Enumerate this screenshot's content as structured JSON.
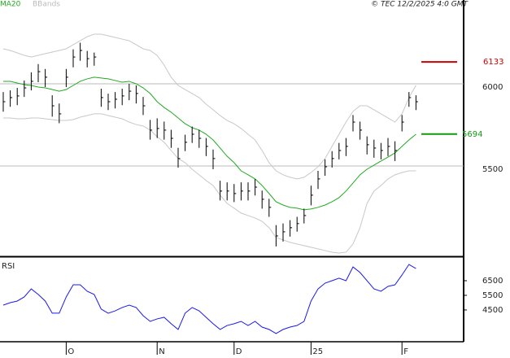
{
  "chart_data": [
    {
      "type": "ohlc",
      "timestamp": "© TEC 12/2/2025 4:0 GMT",
      "categories": [
        null,
        null,
        null,
        null,
        null,
        null,
        null,
        null,
        null,
        "O",
        null,
        null,
        null,
        null,
        null,
        null,
        null,
        null,
        null,
        null,
        null,
        null,
        "N",
        null,
        null,
        null,
        null,
        null,
        null,
        null,
        null,
        null,
        null,
        "D",
        null,
        null,
        null,
        null,
        null,
        null,
        null,
        null,
        null,
        null,
        "25",
        null,
        null,
        null,
        null,
        null,
        null,
        null,
        null,
        null,
        null,
        null,
        null,
        "F",
        null,
        null
      ],
      "high": [
        5950,
        5960,
        5975,
        6020,
        6070,
        6120,
        6090,
        5930,
        5880,
        6090,
        6210,
        6250,
        6200,
        6190,
        5970,
        5940,
        5950,
        5970,
        6000,
        5990,
        5920,
        5780,
        5790,
        5770,
        5720,
        5610,
        5690,
        5740,
        5720,
        5670,
        5600,
        5410,
        5400,
        5390,
        5400,
        5400,
        5420,
        5350,
        5300,
        5140,
        5150,
        5170,
        5190,
        5240,
        5380,
        5470,
        5540,
        5590,
        5640,
        5670,
        5810,
        5770,
        5680,
        5660,
        5640,
        5670,
        5650,
        5810,
        5950,
        5930
      ],
      "low": [
        5830,
        5860,
        5870,
        5920,
        5960,
        6010,
        5980,
        5800,
        5760,
        5980,
        6100,
        6140,
        6100,
        6110,
        5860,
        5840,
        5850,
        5870,
        5900,
        5880,
        5810,
        5660,
        5670,
        5660,
        5610,
        5490,
        5590,
        5640,
        5610,
        5560,
        5480,
        5290,
        5290,
        5280,
        5290,
        5290,
        5320,
        5240,
        5190,
        5010,
        5040,
        5070,
        5100,
        5150,
        5260,
        5360,
        5440,
        5490,
        5540,
        5560,
        5710,
        5660,
        5570,
        5550,
        5540,
        5560,
        5530,
        5710,
        5860,
        5840
      ],
      "close": [
        5891,
        5916,
        5926,
        5975,
        6015,
        6074,
        6040,
        5866,
        5817,
        6040,
        6163,
        6203,
        6153,
        6163,
        5916,
        5891,
        5906,
        5926,
        5955,
        5941,
        5866,
        5718,
        5728,
        5718,
        5668,
        5545,
        5644,
        5693,
        5668,
        5619,
        5545,
        5347,
        5347,
        5332,
        5347,
        5347,
        5371,
        5297,
        5248,
        5074,
        5099,
        5124,
        5149,
        5198,
        5322,
        5421,
        5495,
        5545,
        5594,
        5619,
        5767,
        5718,
        5629,
        5609,
        5594,
        5619,
        5594,
        5767,
        5916,
        5891
      ],
      "color": "#000000",
      "series": [
        {
          "name": "MA20",
          "color": "#22aa22",
          "values": [
            6015,
            6015,
            6005,
            5995,
            5990,
            5980,
            5975,
            5965,
            5955,
            5965,
            5990,
            6015,
            6030,
            6040,
            6035,
            6030,
            6020,
            6010,
            6015,
            6000,
            5975,
            5941,
            5891,
            5856,
            5827,
            5792,
            5757,
            5733,
            5718,
            5693,
            5658,
            5609,
            5559,
            5520,
            5470,
            5446,
            5421,
            5381,
            5332,
            5282,
            5262,
            5248,
            5243,
            5233,
            5238,
            5248,
            5262,
            5282,
            5307,
            5347,
            5396,
            5446,
            5480,
            5505,
            5530,
            5554,
            5579,
            5619,
            5658,
            5693
          ]
        },
        {
          "name": "BBands",
          "color": "#c8c8c8",
          "upper": [
            6213,
            6203,
            6188,
            6173,
            6163,
            6173,
            6183,
            6193,
            6203,
            6213,
            6238,
            6262,
            6287,
            6302,
            6302,
            6292,
            6282,
            6272,
            6262,
            6238,
            6213,
            6203,
            6173,
            6114,
            6040,
            5990,
            5965,
            5941,
            5916,
            5876,
            5842,
            5807,
            5777,
            5757,
            5728,
            5693,
            5658,
            5594,
            5520,
            5470,
            5446,
            5431,
            5421,
            5431,
            5460,
            5495,
            5545,
            5619,
            5693,
            5767,
            5832,
            5866,
            5866,
            5842,
            5817,
            5792,
            5767,
            5817,
            5916,
            5990
          ],
          "lower": [
            5792,
            5792,
            5787,
            5787,
            5792,
            5792,
            5787,
            5782,
            5777,
            5777,
            5782,
            5797,
            5807,
            5817,
            5817,
            5807,
            5797,
            5787,
            5767,
            5752,
            5743,
            5718,
            5678,
            5644,
            5594,
            5545,
            5520,
            5480,
            5446,
            5411,
            5381,
            5322,
            5272,
            5243,
            5213,
            5198,
            5183,
            5163,
            5124,
            5064,
            5050,
            5035,
            5025,
            5015,
            5005,
            4995,
            4985,
            4975,
            4970,
            4975,
            5025,
            5124,
            5272,
            5347,
            5381,
            5421,
            5446,
            5460,
            5470,
            5470
          ]
        }
      ],
      "price_lines": [
        {
          "value": 6133,
          "color": "#cc0000"
        },
        {
          "value": 5694,
          "color": "#119911"
        }
      ],
      "ylim": [
        4950,
        6510
      ],
      "yticks": [
        5500,
        6000
      ],
      "grid": true
    },
    {
      "type": "line",
      "title": "RSI",
      "color": "#1a1aee",
      "values": [
        48.3,
        50,
        51.1,
        53.9,
        59.4,
        55.6,
        51.1,
        42.8,
        42.8,
        53.9,
        62.2,
        62.2,
        57.8,
        55.6,
        45.6,
        42.8,
        44.4,
        46.7,
        48.3,
        46.7,
        41.1,
        37.2,
        38.9,
        40,
        35.6,
        31.7,
        42.8,
        46.7,
        44.4,
        40,
        35.6,
        31.7,
        34.4,
        35.6,
        37.2,
        34.4,
        37.2,
        33.3,
        31.7,
        28.9,
        31.7,
        33.3,
        34.4,
        37.2,
        51.1,
        59.4,
        63.3,
        65,
        66.7,
        65,
        74.4,
        70.6,
        65,
        59.4,
        57.8,
        61.1,
        62.2,
        68.9,
        76.1,
        73.3
      ],
      "ylim": [
        23.3,
        80
      ],
      "yticks": [
        {
          "value": 65,
          "label": "6500"
        },
        {
          "value": 55,
          "label": "5500"
        },
        {
          "value": 45,
          "label": "4500"
        }
      ]
    }
  ]
}
